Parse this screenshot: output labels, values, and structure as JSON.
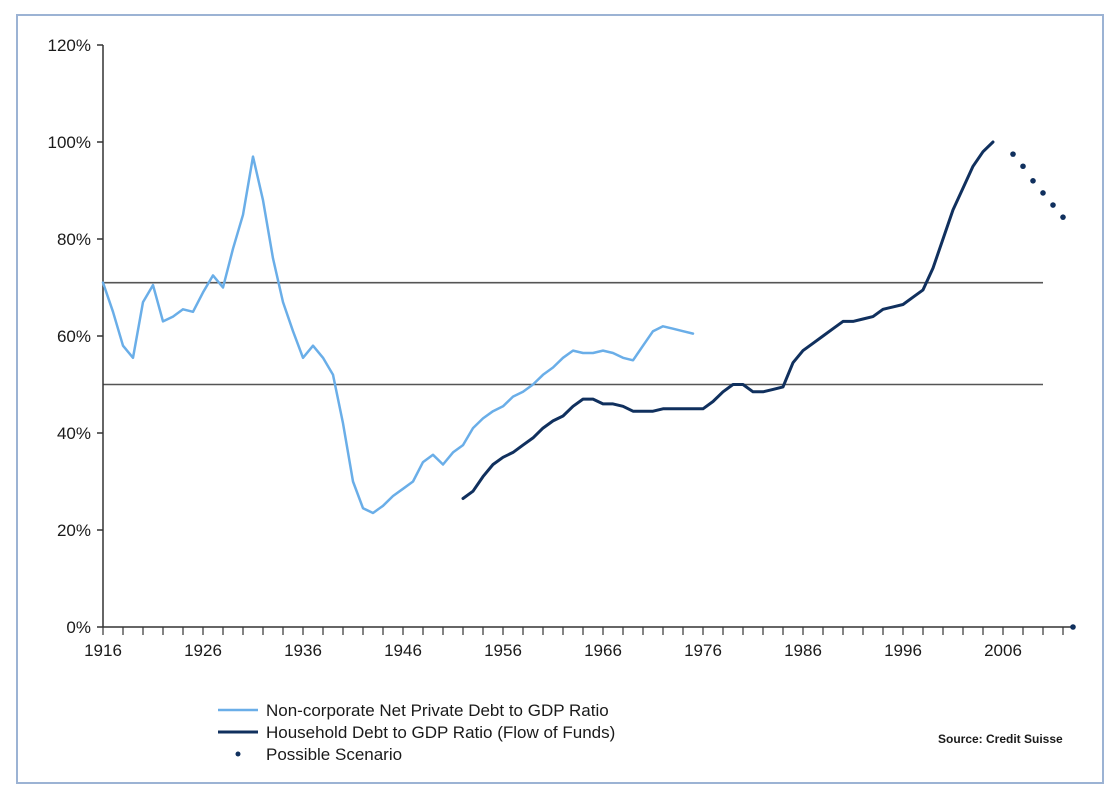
{
  "chart_data": {
    "type": "line",
    "title": "",
    "xlabel": "",
    "ylabel": "",
    "xlim": [
      1916,
      2013
    ],
    "ylim": [
      0,
      120
    ],
    "x_ticks": [
      1916,
      1926,
      1936,
      1946,
      1956,
      1966,
      1976,
      1986,
      1996,
      2006
    ],
    "x_tick_labels": [
      "1916",
      "1926",
      "1936",
      "1946",
      "1956",
      "1966",
      "1976",
      "1986",
      "1996",
      "2006"
    ],
    "y_ticks": [
      0,
      20,
      40,
      60,
      80,
      100,
      120
    ],
    "y_tick_labels": [
      "0%",
      "20%",
      "40%",
      "60%",
      "80%",
      "100%",
      "120%"
    ],
    "grid": false,
    "legend_position": "bottom-center",
    "reference_lines": [
      {
        "y": 71,
        "color": "#555555"
      },
      {
        "y": 50,
        "color": "#555555"
      }
    ],
    "series": [
      {
        "name": "Non-corporate Net Private Debt to GDP Ratio",
        "style": "line",
        "color": "#6aaee8",
        "points": [
          [
            1916,
            71
          ],
          [
            1917,
            65
          ],
          [
            1918,
            58
          ],
          [
            1919,
            55.5
          ],
          [
            1920,
            67
          ],
          [
            1921,
            70.5
          ],
          [
            1922,
            63
          ],
          [
            1923,
            64
          ],
          [
            1924,
            65.5
          ],
          [
            1925,
            65
          ],
          [
            1926,
            69
          ],
          [
            1927,
            72.5
          ],
          [
            1928,
            70
          ],
          [
            1929,
            78
          ],
          [
            1930,
            85
          ],
          [
            1931,
            97
          ],
          [
            1932,
            88
          ],
          [
            1933,
            76
          ],
          [
            1934,
            67
          ],
          [
            1935,
            61
          ],
          [
            1936,
            55.5
          ],
          [
            1937,
            58
          ],
          [
            1938,
            55.5
          ],
          [
            1939,
            52
          ],
          [
            1940,
            42
          ],
          [
            1941,
            30
          ],
          [
            1942,
            24.5
          ],
          [
            1943,
            23.5
          ],
          [
            1944,
            25
          ],
          [
            1945,
            27
          ],
          [
            1946,
            28.5
          ],
          [
            1947,
            30
          ],
          [
            1948,
            34
          ],
          [
            1949,
            35.5
          ],
          [
            1950,
            33.5
          ],
          [
            1951,
            36
          ],
          [
            1952,
            37.5
          ],
          [
            1953,
            41
          ],
          [
            1954,
            43
          ],
          [
            1955,
            44.5
          ],
          [
            1956,
            45.5
          ],
          [
            1957,
            47.5
          ],
          [
            1958,
            48.5
          ],
          [
            1959,
            50
          ],
          [
            1960,
            52
          ],
          [
            1961,
            53.5
          ],
          [
            1962,
            55.5
          ],
          [
            1963,
            57
          ],
          [
            1964,
            56.5
          ],
          [
            1965,
            56.5
          ],
          [
            1966,
            57
          ],
          [
            1967,
            56.5
          ],
          [
            1968,
            55.5
          ],
          [
            1969,
            55
          ],
          [
            1970,
            58
          ],
          [
            1971,
            61
          ],
          [
            1972,
            62
          ],
          [
            1973,
            61.5
          ],
          [
            1974,
            61
          ],
          [
            1975,
            60.5
          ]
        ]
      },
      {
        "name": "Household Debt to GDP Ratio (Flow of Funds)",
        "style": "line",
        "color": "#10305e",
        "points": [
          [
            1952,
            26.5
          ],
          [
            1953,
            28
          ],
          [
            1954,
            31
          ],
          [
            1955,
            33.5
          ],
          [
            1956,
            35
          ],
          [
            1957,
            36
          ],
          [
            1958,
            37.5
          ],
          [
            1959,
            39
          ],
          [
            1960,
            41
          ],
          [
            1961,
            42.5
          ],
          [
            1962,
            43.5
          ],
          [
            1963,
            45.5
          ],
          [
            1964,
            47
          ],
          [
            1965,
            47
          ],
          [
            1966,
            46
          ],
          [
            1967,
            46
          ],
          [
            1968,
            45.5
          ],
          [
            1969,
            44.5
          ],
          [
            1970,
            44.5
          ],
          [
            1971,
            44.5
          ],
          [
            1972,
            45
          ],
          [
            1973,
            45
          ],
          [
            1974,
            45
          ],
          [
            1975,
            45
          ],
          [
            1976,
            45
          ],
          [
            1977,
            46.5
          ],
          [
            1978,
            48.5
          ],
          [
            1979,
            50
          ],
          [
            1980,
            50
          ],
          [
            1981,
            48.5
          ],
          [
            1982,
            48.5
          ],
          [
            1983,
            49
          ],
          [
            1984,
            49.5
          ],
          [
            1985,
            54.5
          ],
          [
            1986,
            57
          ],
          [
            1987,
            58.5
          ],
          [
            1988,
            60
          ],
          [
            1989,
            61.5
          ],
          [
            1990,
            63
          ],
          [
            1991,
            63
          ],
          [
            1992,
            63.5
          ],
          [
            1993,
            64
          ],
          [
            1994,
            65.5
          ],
          [
            1995,
            66
          ],
          [
            1996,
            66.5
          ],
          [
            1997,
            68
          ],
          [
            1998,
            69.5
          ],
          [
            1999,
            74
          ],
          [
            2000,
            80
          ],
          [
            2001,
            86
          ],
          [
            2002,
            90.5
          ],
          [
            2003,
            95
          ],
          [
            2004,
            98
          ],
          [
            2005,
            100
          ]
        ]
      },
      {
        "name": "Possible Scenario",
        "style": "dots",
        "color": "#10305e",
        "points": [
          [
            2007,
            97.5
          ],
          [
            2008,
            95
          ],
          [
            2009,
            92
          ],
          [
            2010,
            89.5
          ],
          [
            2011,
            87
          ],
          [
            2012,
            84.5
          ],
          [
            2013,
            0
          ]
        ]
      }
    ],
    "source": "Source: Credit Suisse"
  }
}
